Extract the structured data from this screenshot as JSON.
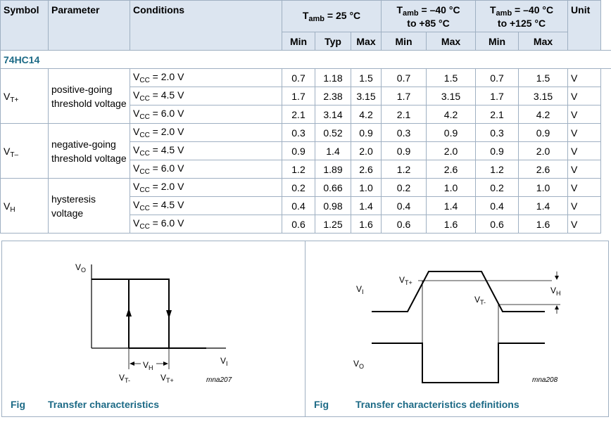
{
  "table": {
    "headers": {
      "symbol": "Symbol",
      "parameter": "Parameter",
      "conditions": "Conditions",
      "t25_main": "T",
      "t25_sub": "amb",
      "t25_rest": " = 25 °C",
      "t85_main": "T",
      "t85_sub": "amb",
      "t85_rest": " = –40 °C",
      "t85_line2": "to +85 °C",
      "t125_main": "T",
      "t125_sub": "amb",
      "t125_rest": " = –40 °C",
      "t125_line2": "to +125 °C",
      "unit": "Unit",
      "min": "Min",
      "typ": "Typ",
      "max": "Max"
    },
    "group": "74HC14",
    "params": [
      {
        "sym_main": "V",
        "sym_sub": "T+",
        "param": "positive-going threshold voltage",
        "rows": [
          {
            "cond_v": "V",
            "cond_sub": "CC",
            "cond_val": " = 2.0 V",
            "v": [
              "0.7",
              "1.18",
              "1.5",
              "0.7",
              "1.5",
              "0.7",
              "1.5"
            ],
            "unit": "V"
          },
          {
            "cond_v": "V",
            "cond_sub": "CC",
            "cond_val": " = 4.5 V",
            "v": [
              "1.7",
              "2.38",
              "3.15",
              "1.7",
              "3.15",
              "1.7",
              "3.15"
            ],
            "unit": "V"
          },
          {
            "cond_v": "V",
            "cond_sub": "CC",
            "cond_val": " = 6.0 V",
            "v": [
              "2.1",
              "3.14",
              "4.2",
              "2.1",
              "4.2",
              "2.1",
              "4.2"
            ],
            "unit": "V"
          }
        ]
      },
      {
        "sym_main": "V",
        "sym_sub": "T–",
        "param": "negative-going threshold voltage",
        "rows": [
          {
            "cond_v": "V",
            "cond_sub": "CC",
            "cond_val": " = 2.0 V",
            "v": [
              "0.3",
              "0.52",
              "0.9",
              "0.3",
              "0.9",
              "0.3",
              "0.9"
            ],
            "unit": "V"
          },
          {
            "cond_v": "V",
            "cond_sub": "CC",
            "cond_val": " = 4.5 V",
            "v": [
              "0.9",
              "1.4",
              "2.0",
              "0.9",
              "2.0",
              "0.9",
              "2.0"
            ],
            "unit": "V"
          },
          {
            "cond_v": "V",
            "cond_sub": "CC",
            "cond_val": " = 6.0 V",
            "v": [
              "1.2",
              "1.89",
              "2.6",
              "1.2",
              "2.6",
              "1.2",
              "2.6"
            ],
            "unit": "V"
          }
        ]
      },
      {
        "sym_main": "V",
        "sym_sub": "H",
        "param": "hysteresis voltage",
        "rows": [
          {
            "cond_v": "V",
            "cond_sub": "CC",
            "cond_val": " = 2.0 V",
            "v": [
              "0.2",
              "0.66",
              "1.0",
              "0.2",
              "1.0",
              "0.2",
              "1.0"
            ],
            "unit": "V"
          },
          {
            "cond_v": "V",
            "cond_sub": "CC",
            "cond_val": " = 4.5 V",
            "v": [
              "0.4",
              "0.98",
              "1.4",
              "0.4",
              "1.4",
              "0.4",
              "1.4"
            ],
            "unit": "V"
          },
          {
            "cond_v": "V",
            "cond_sub": "CC",
            "cond_val": " = 6.0 V",
            "v": [
              "0.6",
              "1.25",
              "1.6",
              "0.6",
              "1.6",
              "0.6",
              "1.6"
            ],
            "unit": "V"
          }
        ]
      }
    ]
  },
  "fig1": {
    "label_vo": "V",
    "label_vo_sub": "O",
    "label_vi": "V",
    "label_vi_sub": "I",
    "label_vh": "V",
    "label_vh_sub": "H",
    "label_vtm": "V",
    "label_vtm_sub": "T-",
    "label_vtp": "V",
    "label_vtp_sub": "T+",
    "ref": "mna207",
    "fig": "Fig",
    "caption": "Transfer characteristics"
  },
  "fig2": {
    "label_vi": "V",
    "label_vi_sub": "I",
    "label_vo": "V",
    "label_vo_sub": "O",
    "label_vtp": "V",
    "label_vtp_sub": "T+",
    "label_vtm": "V",
    "label_vtm_sub": "T-",
    "label_vh": "V",
    "label_vh_sub": "H",
    "ref": "mna208",
    "fig": "Fig",
    "caption": "Transfer characteristics definitions"
  },
  "colors": {
    "header_bg": "#dce5f0",
    "border": "#9fb0c2",
    "accent": "#1c6a86"
  }
}
